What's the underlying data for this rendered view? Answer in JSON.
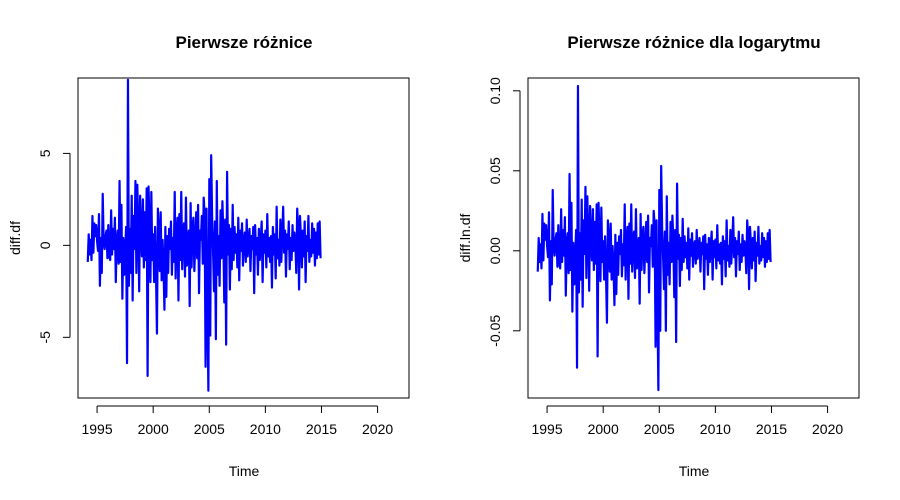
{
  "chart_data": [
    {
      "type": "line",
      "title": "Pierwsze różnice",
      "xlabel": "Time",
      "ylabel": "diff.df",
      "xlim": [
        1993.3,
        2022.8
      ],
      "ylim": [
        -8.3,
        9.1
      ],
      "xticks": [
        1995,
        2000,
        2005,
        2010,
        2015,
        2020
      ],
      "xtick_labels": [
        "1995",
        "2000",
        "2005",
        "2010",
        "2015",
        "2020"
      ],
      "yticks": [
        -5,
        0,
        5
      ],
      "ytick_labels": [
        "-5",
        "0",
        "5"
      ],
      "color": "#0000ff",
      "grid": false,
      "x_start": 1994.17,
      "x_step": 0.08333,
      "values": [
        -0.9,
        0.6,
        -0.5,
        0.3,
        -0.8,
        1.6,
        -0.4,
        1.2,
        0.5,
        1.1,
        0.2,
        -0.3,
        1.7,
        -2.2,
        0.4,
        -1.5,
        2.8,
        0.2,
        -0.2,
        0.5,
        0.8,
        -0.7,
        1.1,
        -0.6,
        -0.8,
        1.9,
        -0.5,
        0.9,
        -0.2,
        1.5,
        -2.0,
        0.3,
        0.8,
        -1.0,
        3.5,
        -0.9,
        2.2,
        -2.9,
        0.4,
        -1.6,
        -0.3,
        1.0,
        -6.4,
        9.0,
        -2.2,
        0.9,
        -1.5,
        2.7,
        -3.0,
        1.6,
        -0.2,
        3.5,
        -1.5,
        3.3,
        1.0,
        -2.5,
        2.7,
        0.8,
        -0.6,
        2.5,
        -1.2,
        1.8,
        -0.8,
        3.1,
        -7.1,
        3.2,
        1.1,
        -2.0,
        2.9,
        -0.8,
        0.6,
        -2.0,
        1.0,
        -1.6,
        -4.8,
        2.0,
        0.7,
        -1.4,
        1.8,
        -1.9,
        0.3,
        -1.1,
        -3.5,
        1.0,
        -2.8,
        0.5,
        -1.5,
        0.9,
        -0.2,
        1.3,
        -1.6,
        0.4,
        -0.9,
        2.9,
        -1.8,
        0.6,
        1.5,
        -3.0,
        1.7,
        -0.8,
        2.9,
        -1.3,
        0.7,
        1.2,
        -1.7,
        2.6,
        -1.1,
        -0.4,
        0.8,
        -3.3,
        2.3,
        -1.2,
        0.9,
        1.5,
        -1.4,
        0.2,
        1.8,
        -0.7,
        2.2,
        -2.6,
        0.8,
        0.3,
        1.6,
        -1.0,
        2.6,
        1.7,
        -6.6,
        2.0,
        -3.5,
        -7.9,
        3.6,
        -4.9,
        4.9,
        1.5,
        -0.3,
        -2.5,
        1.3,
        -5.1,
        3.5,
        -1.6,
        0.5,
        -2.2,
        1.9,
        -0.7,
        2.4,
        0.6,
        -3.1,
        1.4,
        -5.4,
        4.0,
        -0.5,
        1.1,
        -2.4,
        0.9,
        -1.3,
        2.2,
        -0.8,
        1.0,
        -0.4,
        0.6,
        -1.2,
        1.5,
        -1.9,
        0.8,
        -0.3,
        1.2,
        -1.1,
        0.3,
        0.7,
        -0.9,
        1.4,
        -0.6,
        0.2,
        0.9,
        -1.4,
        0.5,
        -0.2,
        1.0,
        -2.6,
        1.1,
        -0.5,
        0.4,
        -1.6,
        0.9,
        -0.8,
        0.3,
        1.3,
        -2.0,
        0.6,
        -0.4,
        0.8,
        -1.2,
        1.7,
        -0.6,
        0.4,
        -0.9,
        0.5,
        -2.3,
        1.0,
        -0.5,
        0.6,
        -1.8,
        2.1,
        -0.7,
        0.3,
        -1.1,
        1.4,
        -0.9,
        0.5,
        2.1,
        -0.4,
        0.8,
        -1.7,
        0.6,
        -0.2,
        1.3,
        -1.3,
        0.4,
        -0.8,
        1.1,
        -0.3,
        0.7,
        0.2,
        -1.5,
        2.0,
        0.9,
        -2.4,
        1.6,
        0.4,
        -1.2,
        0.8,
        -0.6,
        1.3,
        -2.0,
        0.5,
        -0.3,
        1.6,
        -0.9,
        0.3,
        -0.6,
        1.2,
        -0.4,
        0.9,
        -1.1,
        0.7,
        -0.7,
        1.2,
        -0.5,
        1.3,
        -0.7
      ]
    },
    {
      "type": "line",
      "title": "Pierwsze różnice dla logarytmu",
      "xlabel": "Time",
      "ylabel": "diff.ln.df",
      "xlim": [
        1993.3,
        2022.8
      ],
      "ylim": [
        -0.092,
        0.108
      ],
      "xticks": [
        1995,
        2000,
        2005,
        2010,
        2015,
        2020
      ],
      "xtick_labels": [
        "1995",
        "2000",
        "2005",
        "2010",
        "2015",
        "2020"
      ],
      "yticks": [
        -0.05,
        0.0,
        0.05,
        0.1
      ],
      "ytick_labels": [
        "-0.05",
        "0.00",
        "0.05",
        "0.10"
      ],
      "color": "#0000ff",
      "grid": false,
      "x_start": 1994.17,
      "x_step": 0.08333,
      "values": [
        -0.013,
        0.008,
        -0.007,
        0.004,
        -0.011,
        0.023,
        -0.006,
        0.017,
        0.007,
        0.016,
        0.003,
        -0.004,
        0.024,
        -0.031,
        0.006,
        -0.021,
        0.038,
        0.003,
        -0.003,
        0.007,
        0.011,
        -0.01,
        0.016,
        -0.008,
        -0.011,
        0.026,
        -0.007,
        0.013,
        -0.003,
        0.021,
        -0.028,
        0.004,
        0.011,
        -0.014,
        0.048,
        -0.012,
        0.03,
        -0.038,
        0.005,
        -0.021,
        -0.004,
        0.013,
        -0.073,
        0.103,
        -0.026,
        0.011,
        -0.018,
        0.032,
        -0.035,
        0.019,
        -0.002,
        0.04,
        -0.017,
        0.034,
        0.01,
        -0.025,
        0.028,
        0.008,
        -0.006,
        0.026,
        -0.012,
        0.018,
        -0.008,
        0.029,
        -0.066,
        0.03,
        0.01,
        -0.019,
        0.027,
        -0.007,
        0.006,
        -0.018,
        0.009,
        -0.015,
        -0.045,
        0.019,
        0.007,
        -0.013,
        0.017,
        -0.018,
        0.003,
        -0.01,
        -0.034,
        0.01,
        -0.027,
        0.005,
        -0.015,
        0.009,
        -0.002,
        0.013,
        -0.016,
        0.004,
        -0.009,
        0.029,
        -0.018,
        0.006,
        0.015,
        -0.03,
        0.017,
        -0.008,
        0.029,
        -0.013,
        0.007,
        0.012,
        -0.017,
        0.026,
        -0.011,
        -0.004,
        0.008,
        -0.033,
        0.023,
        -0.012,
        0.009,
        0.015,
        -0.014,
        0.002,
        0.018,
        -0.007,
        0.022,
        -0.026,
        0.008,
        0.003,
        0.016,
        -0.01,
        0.025,
        0.016,
        -0.06,
        0.019,
        -0.034,
        -0.087,
        0.038,
        -0.05,
        0.053,
        0.014,
        -0.003,
        -0.024,
        0.012,
        -0.05,
        0.034,
        -0.015,
        0.005,
        -0.021,
        0.018,
        -0.007,
        0.022,
        0.006,
        -0.029,
        0.013,
        -0.057,
        0.042,
        -0.005,
        0.01,
        -0.022,
        0.008,
        -0.012,
        0.02,
        -0.007,
        0.009,
        -0.004,
        0.005,
        -0.011,
        0.014,
        -0.018,
        0.007,
        -0.003,
        0.011,
        -0.01,
        0.003,
        0.006,
        -0.008,
        0.013,
        -0.005,
        0.002,
        0.008,
        -0.013,
        0.005,
        -0.002,
        0.009,
        -0.024,
        0.01,
        -0.005,
        0.004,
        -0.015,
        0.008,
        -0.007,
        0.003,
        0.012,
        -0.018,
        0.006,
        -0.004,
        0.007,
        -0.011,
        0.016,
        -0.006,
        0.004,
        -0.008,
        0.005,
        -0.021,
        0.009,
        -0.005,
        0.006,
        -0.016,
        0.019,
        -0.006,
        0.003,
        -0.01,
        0.013,
        -0.008,
        0.005,
        0.021,
        -0.004,
        0.008,
        -0.016,
        0.006,
        -0.002,
        0.012,
        -0.012,
        0.004,
        -0.007,
        0.01,
        -0.003,
        0.006,
        0.002,
        -0.014,
        0.019,
        0.009,
        -0.024,
        0.015,
        0.004,
        -0.011,
        0.008,
        -0.006,
        0.012,
        -0.019,
        0.005,
        -0.003,
        0.015,
        -0.008,
        0.003,
        -0.006,
        0.011,
        -0.004,
        0.008,
        -0.01,
        0.006,
        -0.007,
        0.011,
        -0.005,
        0.013,
        -0.007
      ]
    }
  ]
}
